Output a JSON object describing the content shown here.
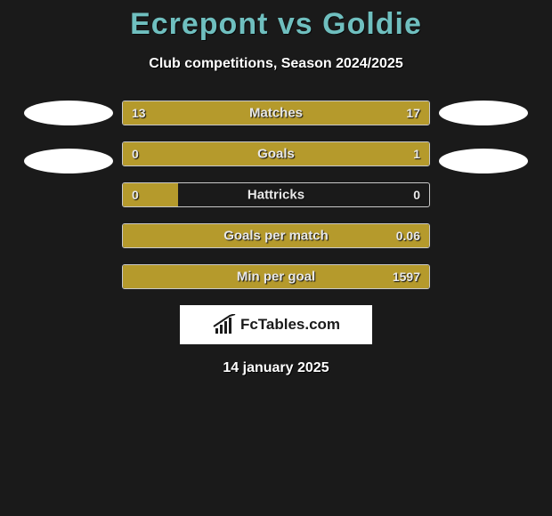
{
  "title_font_color": "#6fbfbf",
  "bg_color": "#1a1a1a",
  "title": "Ecrepont vs Goldie",
  "subtitle": "Club competitions, Season 2024/2025",
  "date": "14 january 2025",
  "brand": "FcTables.com",
  "photo_color": "#ffffff",
  "left_color": "#b59a2c",
  "right_color": "#b59a2c",
  "bar_border": "#c9c9c9",
  "stats": [
    {
      "label": "Matches",
      "left_val": "13",
      "right_val": "17",
      "left_pct": 40,
      "right_pct": 60
    },
    {
      "label": "Goals",
      "left_val": "0",
      "right_val": "1",
      "left_pct": 18,
      "right_pct": 82
    },
    {
      "label": "Hattricks",
      "left_val": "0",
      "right_val": "0",
      "left_pct": 18,
      "right_pct": 0
    },
    {
      "label": "Goals per match",
      "left_val": "",
      "right_val": "0.06",
      "left_pct": 33,
      "right_pct": 67
    },
    {
      "label": "Min per goal",
      "left_val": "",
      "right_val": "1597",
      "left_pct": 42,
      "right_pct": 58
    }
  ]
}
